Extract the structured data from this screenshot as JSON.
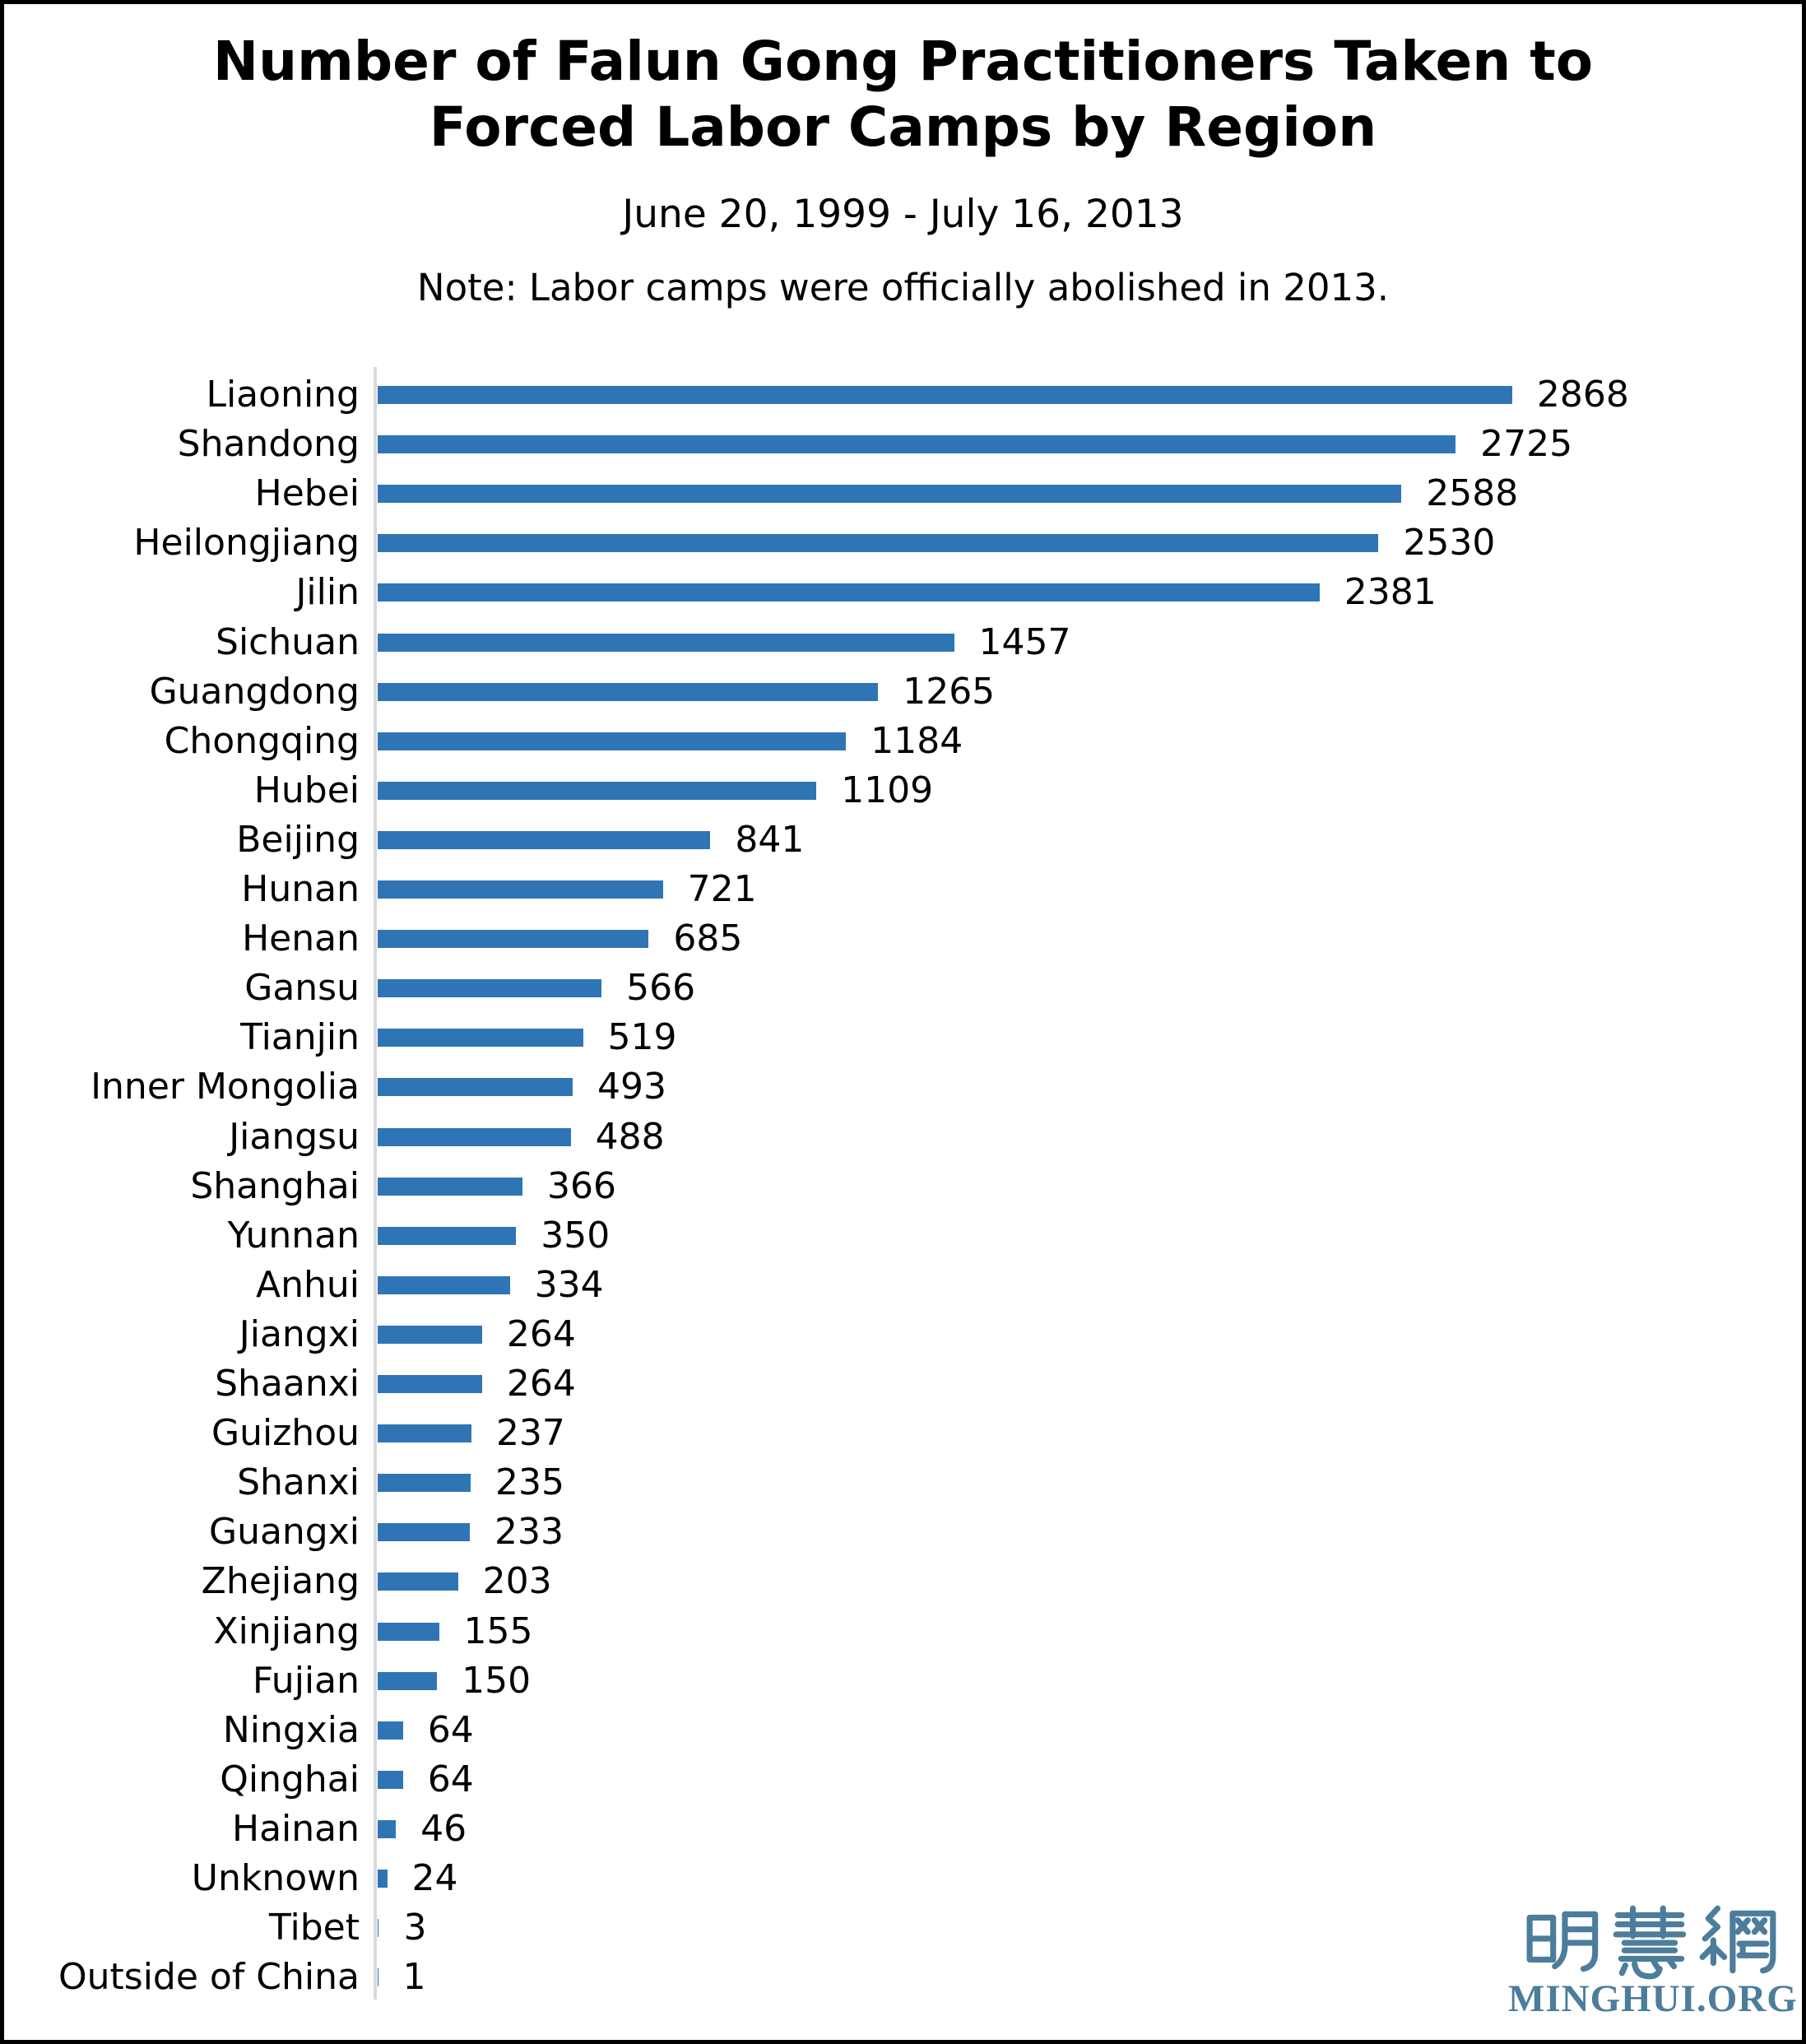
{
  "header": {
    "title_lines": [
      "Number of Falun Gong Practitioners Taken to",
      "Forced Labor Camps by Region"
    ],
    "subtitle": "June 20, 1999 - July 16, 2013",
    "note": "Note: Labor camps were officially abolished in 2013."
  },
  "colors": {
    "bar": "#2F75B6",
    "axis_line": "#D9D9D9",
    "logo": "#4C7D9B",
    "text": "#000000",
    "frame_border": "#000000"
  },
  "logo": {
    "hanzi": "明慧網",
    "site": "MINGHUI.ORG"
  },
  "chart_data": {
    "type": "bar",
    "orientation": "horizontal",
    "title": "Number of Falun Gong Practitioners Taken to Forced Labor Camps by Region",
    "subtitle": "June 20, 1999 - July 16, 2013",
    "note": "Note: Labor camps were officially abolished in 2013.",
    "xlabel": "",
    "ylabel": "",
    "xlim": [
      0,
      2980
    ],
    "grid": false,
    "legend": false,
    "value_labels": true,
    "categories": [
      "Liaoning",
      "Shandong",
      "Hebei",
      "Heilongjiang",
      "Jilin",
      "Sichuan",
      "Guangdong",
      "Chongqing",
      "Hubei",
      "Beijing",
      "Hunan",
      "Henan",
      "Gansu",
      "Tianjin",
      "Inner Mongolia",
      "Jiangsu",
      "Shanghai",
      "Yunnan",
      "Anhui",
      "Jiangxi",
      "Shaanxi",
      "Guizhou",
      "Shanxi",
      "Guangxi",
      "Zhejiang",
      "Xinjiang",
      "Fujian",
      "Ningxia",
      "Qinghai",
      "Hainan",
      "Unknown",
      "Tibet",
      "Outside of China"
    ],
    "values": [
      2868,
      2725,
      2588,
      2530,
      2381,
      1457,
      1265,
      1184,
      1109,
      841,
      721,
      685,
      566,
      519,
      493,
      488,
      366,
      350,
      334,
      264,
      264,
      237,
      235,
      233,
      203,
      155,
      150,
      64,
      64,
      46,
      24,
      3,
      1
    ]
  }
}
